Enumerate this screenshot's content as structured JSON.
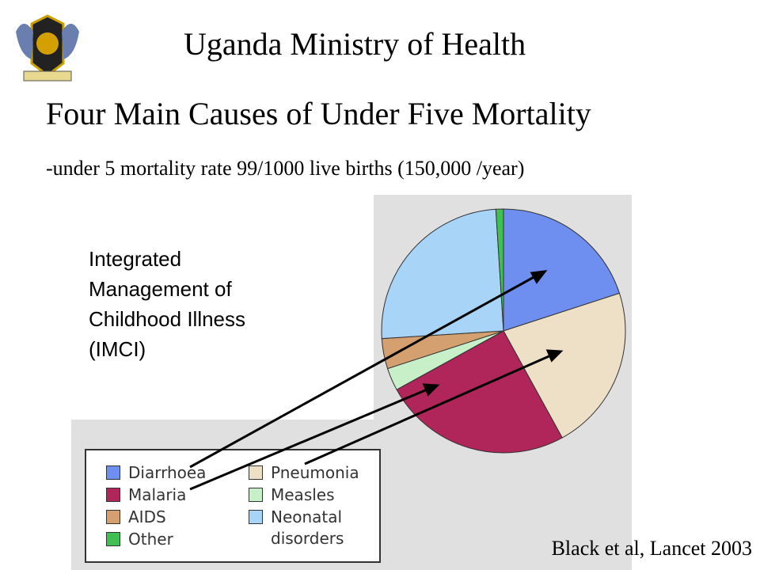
{
  "header": {
    "title": "Uganda Ministry of Health"
  },
  "slide_title": "Four Main Causes of  Under Five Mortality",
  "subtitle": "-under 5 mortality rate 99/1000 live births (150,000 /year)",
  "note": "Integrated Management of Childhood Illness (IMCI)",
  "citation": "Black et al, Lancet 2003",
  "chart_data": {
    "type": "pie",
    "categories": [
      "Diarrhoea",
      "Pneumonia",
      "Malaria",
      "Measles",
      "AIDS",
      "Neonatal disorders",
      "Other"
    ],
    "values": [
      20,
      22,
      25,
      3,
      4,
      25,
      1
    ],
    "colors": [
      "#6e8ff0",
      "#eee0c6",
      "#b0265a",
      "#c8f0c8",
      "#d4a070",
      "#a8d4f8",
      "#40c050"
    ]
  }
}
